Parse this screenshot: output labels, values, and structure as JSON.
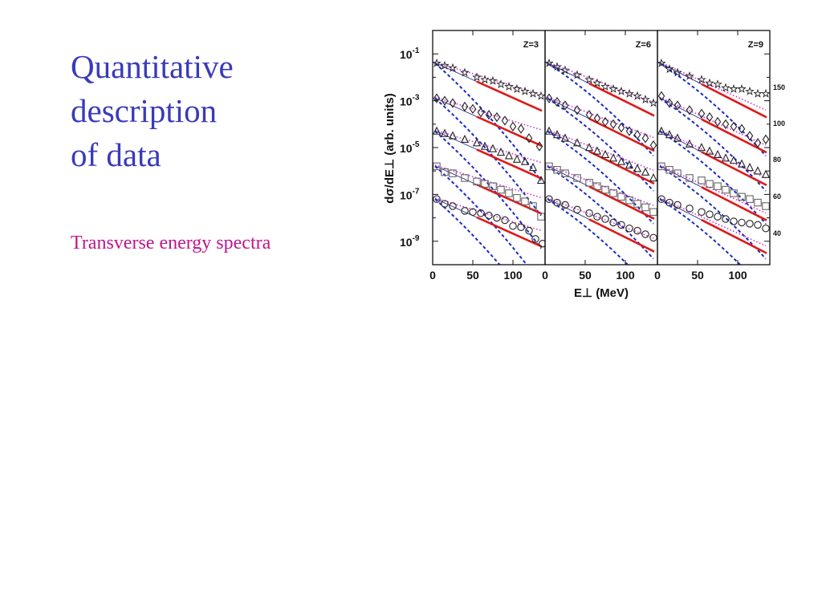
{
  "slide": {
    "title_lines": [
      "Quantitative",
      "description",
      "of data"
    ],
    "subtitle": "Transverse energy spectra"
  },
  "colors": {
    "title": "#3a3aba",
    "subtitle": "#c0148c",
    "model_solid": "#e01818",
    "model_dashed": "#1c2cc0",
    "model_dotted": "#d030d0",
    "thin_line": "#303090",
    "markers": "#222222",
    "square_markers": "#666666"
  },
  "chart_data": {
    "type": "scatter",
    "ylabel": "dσ/dE⊥ (arb. units)",
    "xlabel": "E⊥ (MeV)",
    "x_ticks": [
      "0",
      "50",
      "100"
    ],
    "y_ticks": [
      {
        "base": "10",
        "exp": "-1"
      },
      {
        "base": "10",
        "exp": "-3"
      },
      {
        "base": "10",
        "exp": "-5"
      },
      {
        "base": "10",
        "exp": "-7"
      },
      {
        "base": "10",
        "exp": "-9"
      }
    ],
    "xlim": [
      0,
      140
    ],
    "ylim_log10": [
      -10,
      0
    ],
    "right_axis_labels": [
      "150",
      "100",
      "80",
      "60",
      "40"
    ],
    "series_markers": [
      "star",
      "diamond",
      "triangle",
      "square",
      "circle"
    ],
    "panels": [
      {
        "label": "Z=3",
        "series": [
          {
            "y0": -1.4,
            "solid_slope": -0.0154,
            "dashed_slope": -0.03,
            "dotted_slope": -0.0105,
            "x": [
              5,
              15,
              25,
              40,
              55,
              65,
              75,
              85,
              95,
              105,
              115,
              125,
              135
            ],
            "logy": [
              -1.4,
              -1.5,
              -1.6,
              -1.8,
              -2.0,
              -2.1,
              -2.15,
              -2.3,
              -2.4,
              -2.5,
              -2.6,
              -2.7,
              -2.8
            ]
          },
          {
            "y0": -2.9,
            "solid_slope": -0.0154,
            "dashed_slope": -0.03,
            "dotted_slope": -0.0105,
            "x": [
              5,
              15,
              25,
              40,
              50,
              60,
              70,
              80,
              90,
              100,
              110,
              120,
              133
            ],
            "logy": [
              -2.9,
              -3.0,
              -3.1,
              -3.25,
              -3.35,
              -3.5,
              -3.6,
              -3.7,
              -3.85,
              -4.1,
              -4.2,
              -4.6,
              -4.95
            ]
          },
          {
            "y0": -4.3,
            "solid_slope": -0.0154,
            "dashed_slope": -0.03,
            "dotted_slope": -0.0105,
            "x": [
              5,
              15,
              25,
              40,
              55,
              65,
              75,
              85,
              95,
              105,
              115,
              125,
              135
            ],
            "logy": [
              -4.3,
              -4.4,
              -4.5,
              -4.65,
              -4.8,
              -4.95,
              -5.05,
              -5.2,
              -5.35,
              -5.5,
              -5.6,
              -5.85,
              -6.4
            ]
          },
          {
            "y0": -5.8,
            "solid_slope": -0.0154,
            "dashed_slope": -0.03,
            "dotted_slope": -0.0105,
            "x": [
              5,
              15,
              25,
              40,
              55,
              65,
              75,
              85,
              95,
              105,
              115,
              125,
              135
            ],
            "logy": [
              -5.8,
              -6.05,
              -6.1,
              -6.3,
              -6.45,
              -6.55,
              -6.65,
              -6.8,
              -6.95,
              -7.15,
              -7.3,
              -7.5,
              -7.95
            ]
          },
          {
            "y0": -7.2,
            "solid_slope": -0.0154,
            "dashed_slope": -0.03,
            "dotted_slope": -0.0105,
            "x": [
              5,
              15,
              25,
              40,
              50,
              60,
              70,
              80,
              90,
              100,
              110,
              120,
              128,
              137
            ],
            "logy": [
              -7.2,
              -7.4,
              -7.5,
              -7.7,
              -7.75,
              -7.8,
              -7.9,
              -8.0,
              -8.1,
              -8.35,
              -8.4,
              -8.55,
              -8.9,
              -9.1
            ]
          }
        ]
      },
      {
        "label": "Z=6",
        "series": [
          {
            "y0": -1.4,
            "solid_slope": -0.017,
            "dashed_slope": -0.022,
            "dotted_slope": -0.013,
            "x": [
              5,
              15,
              25,
              40,
              55,
              65,
              75,
              85,
              95,
              105,
              115,
              125,
              135
            ],
            "logy": [
              -1.4,
              -1.55,
              -1.7,
              -1.9,
              -2.1,
              -2.25,
              -2.4,
              -2.5,
              -2.6,
              -2.7,
              -2.8,
              -2.95,
              -3.1
            ]
          },
          {
            "y0": -2.9,
            "solid_slope": -0.017,
            "dashed_slope": -0.022,
            "dotted_slope": -0.013,
            "x": [
              5,
              15,
              25,
              40,
              55,
              65,
              75,
              85,
              95,
              105,
              115,
              125,
              135
            ],
            "logy": [
              -2.9,
              -3.05,
              -3.2,
              -3.4,
              -3.6,
              -3.75,
              -3.9,
              -4.0,
              -4.15,
              -4.3,
              -4.45,
              -4.6,
              -4.9
            ]
          },
          {
            "y0": -4.3,
            "solid_slope": -0.017,
            "dashed_slope": -0.022,
            "dotted_slope": -0.013,
            "x": [
              5,
              15,
              25,
              40,
              55,
              65,
              75,
              85,
              95,
              105,
              115,
              125,
              135
            ],
            "logy": [
              -4.3,
              -4.45,
              -4.6,
              -4.8,
              -5.0,
              -5.15,
              -5.3,
              -5.45,
              -5.6,
              -5.75,
              -5.9,
              -6.05,
              -6.3
            ]
          },
          {
            "y0": -5.8,
            "solid_slope": -0.017,
            "dashed_slope": -0.022,
            "dotted_slope": -0.013,
            "x": [
              5,
              15,
              25,
              40,
              55,
              65,
              75,
              85,
              95,
              105,
              115,
              125,
              135
            ],
            "logy": [
              -5.8,
              -5.95,
              -6.1,
              -6.3,
              -6.5,
              -6.65,
              -6.8,
              -6.95,
              -7.1,
              -7.25,
              -7.4,
              -7.55,
              -7.75
            ]
          },
          {
            "y0": -7.2,
            "solid_slope": -0.017,
            "dashed_slope": -0.022,
            "dotted_slope": -0.013,
            "x": [
              5,
              15,
              25,
              40,
              55,
              65,
              75,
              85,
              95,
              105,
              115,
              125,
              135
            ],
            "logy": [
              -7.2,
              -7.35,
              -7.45,
              -7.65,
              -7.8,
              -7.95,
              -8.05,
              -8.2,
              -8.3,
              -8.45,
              -8.55,
              -8.7,
              -8.85
            ]
          }
        ]
      },
      {
        "label": "Z=9",
        "series": [
          {
            "y0": -1.4,
            "solid_slope": -0.0175,
            "dashed_slope": -0.022,
            "dotted_slope": -0.0155,
            "x": [
              5,
              15,
              25,
              40,
              55,
              65,
              75,
              85,
              95,
              105,
              115,
              125,
              135
            ],
            "logy": [
              -1.4,
              -1.65,
              -1.8,
              -1.95,
              -2.1,
              -2.25,
              -2.3,
              -2.45,
              -2.5,
              -2.5,
              -2.6,
              -2.7,
              -2.7
            ]
          },
          {
            "y0": -2.9,
            "solid_slope": -0.0175,
            "dashed_slope": -0.022,
            "dotted_slope": -0.0155,
            "x": [
              5,
              15,
              25,
              40,
              55,
              65,
              75,
              85,
              95,
              105,
              115,
              125,
              135
            ],
            "logy": [
              -2.8,
              -3.1,
              -3.2,
              -3.4,
              -3.55,
              -3.7,
              -3.9,
              -4.0,
              -4.1,
              -4.2,
              -4.5,
              -4.8,
              -4.65
            ]
          },
          {
            "y0": -4.3,
            "solid_slope": -0.0175,
            "dashed_slope": -0.022,
            "dotted_slope": -0.0155,
            "x": [
              5,
              15,
              25,
              40,
              55,
              65,
              75,
              85,
              95,
              105,
              115,
              125,
              135
            ],
            "logy": [
              -4.3,
              -4.45,
              -4.6,
              -4.85,
              -5.0,
              -5.15,
              -5.3,
              -5.45,
              -5.55,
              -5.7,
              -5.85,
              -6.0,
              -6.15
            ]
          },
          {
            "y0": -5.8,
            "solid_slope": -0.0175,
            "dashed_slope": -0.022,
            "dotted_slope": -0.0155,
            "x": [
              5,
              15,
              25,
              40,
              55,
              65,
              75,
              85,
              95,
              105,
              115,
              125,
              135
            ],
            "logy": [
              -5.8,
              -5.95,
              -6.1,
              -6.3,
              -6.4,
              -6.55,
              -6.65,
              -6.8,
              -6.95,
              -7.1,
              -7.2,
              -7.35,
              -7.5
            ]
          },
          {
            "y0": -7.2,
            "solid_slope": -0.0175,
            "dashed_slope": -0.022,
            "dotted_slope": -0.0155,
            "x": [
              5,
              15,
              25,
              40,
              55,
              65,
              75,
              85,
              95,
              105,
              115,
              125,
              135
            ],
            "logy": [
              -7.2,
              -7.35,
              -7.45,
              -7.6,
              -7.75,
              -7.85,
              -7.95,
              -8.05,
              -8.15,
              -8.2,
              -8.25,
              -8.3,
              -8.45
            ]
          }
        ]
      }
    ]
  }
}
